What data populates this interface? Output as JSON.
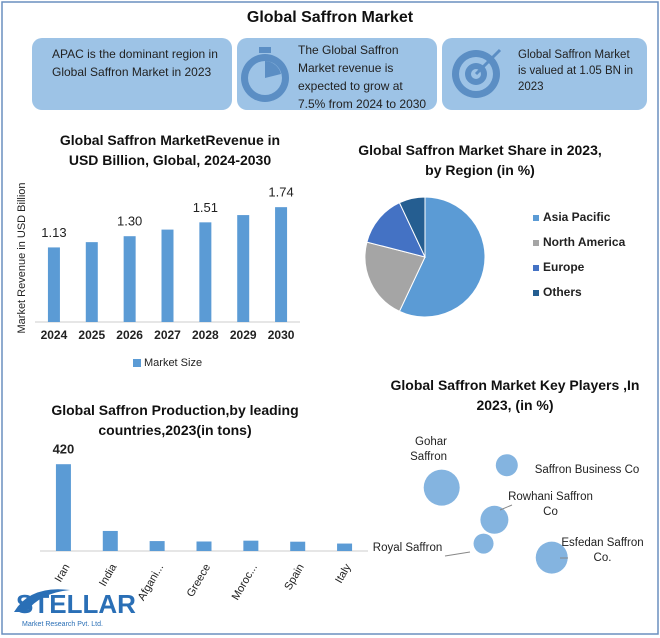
{
  "header": {
    "title": "Global Saffron Market"
  },
  "cards": [
    "APAC is the dominant region in Global Saffron Market in 2023",
    "The Global Saffron Market revenue is expected to grow at 7.5% from 2024 to 2030",
    "Global Saffron Market is valued at 1.05 BN in 2023"
  ],
  "chart_data": [
    {
      "type": "bar",
      "title": "Global Saffron MarketRevenue in USD Billion, Global, 2024-2030",
      "y_label": "Market Revenue in USD Billion",
      "categories": [
        "2024",
        "2025",
        "2026",
        "2027",
        "2028",
        "2029",
        "2030"
      ],
      "series": [
        {
          "name": "Market Size",
          "color": "#5b9bd5",
          "values": [
            1.13,
            1.21,
            1.3,
            1.4,
            1.51,
            1.62,
            1.74
          ],
          "value_labels": [
            "1.13",
            null,
            "1.30",
            null,
            "1.51",
            null,
            "1.74"
          ]
        }
      ],
      "ylim": [
        0,
        2
      ],
      "legend": "bottom"
    },
    {
      "type": "pie",
      "title": "Global Saffron Market Share in 2023, by Region (in %)",
      "categories": [
        "Asia Pacific",
        "North America",
        "Europe",
        "Others"
      ],
      "values": [
        57,
        22,
        14,
        7
      ],
      "colors": [
        "#5b9bd5",
        "#a5a5a5",
        "#4472c4",
        "#255e91"
      ],
      "legend": "right"
    },
    {
      "type": "bar",
      "title": "Global Saffron Production,by leading countries,2023(in tons)",
      "categories": [
        "Iran",
        "India",
        "Afgani...",
        "Greece",
        "Moroc...",
        "Spain",
        "Italy"
      ],
      "series": [
        {
          "name": null,
          "color": "#5b9bd5",
          "values": [
            420,
            97,
            48,
            46,
            50,
            45,
            36
          ],
          "value_labels": [
            "420",
            null,
            null,
            null,
            null,
            null,
            null
          ]
        }
      ],
      "ylim": [
        0,
        450
      ]
    },
    {
      "type": "bubble",
      "title": "Global Saffron Market Key Players ,In 2023, (in %)",
      "labels": [
        "Gohar Saffron",
        "Saffron Business Co",
        "Rowhani Saffron Co",
        "Royal Saffron",
        "Esfedan Saffron Co."
      ],
      "x": [
        1.4,
        5.6,
        4.8,
        4.1,
        8.5
      ],
      "y": [
        6.6,
        8.2,
        4.3,
        2.6,
        1.6
      ],
      "sizes": [
        18,
        11,
        14,
        10,
        16
      ],
      "color": "#5b9bd5",
      "xlim": [
        0,
        10
      ],
      "ylim": [
        0,
        10
      ]
    }
  ],
  "logo": {
    "name": "STELLAR",
    "tagline": "Market Research Pvt. Ltd."
  }
}
